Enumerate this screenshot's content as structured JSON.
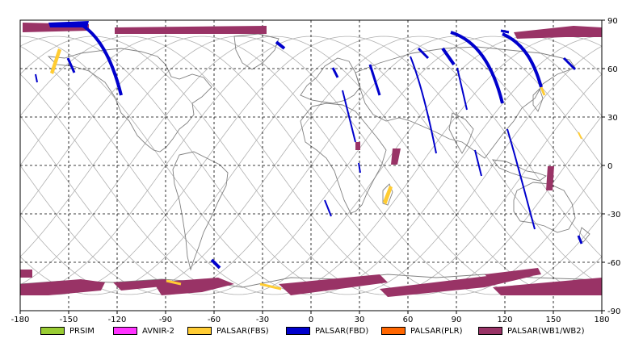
{
  "map": {
    "x_ticks": [
      "-180",
      "-150",
      "-120",
      "-90",
      "-60",
      "-30",
      "0",
      "30",
      "60",
      "90",
      "120",
      "150",
      "180"
    ],
    "y_ticks": [
      "90",
      "60",
      "30",
      "0",
      "-30",
      "-60",
      "-90"
    ],
    "frame_color": "#000000",
    "grid_color": "#000000",
    "orbit_color": "#b0b0b0",
    "coast_color": "#808080"
  },
  "legend": {
    "items": [
      {
        "label": "PRSIM",
        "color": "#99cc33"
      },
      {
        "label": "AVNIR-2",
        "color": "#ff33ff"
      },
      {
        "label": "PALSAR(FBS)",
        "color": "#ffcc33"
      },
      {
        "label": "PALSAR(FBD)",
        "color": "#0000cc"
      },
      {
        "label": "PALSAR(PLR)",
        "color": "#ff6600"
      },
      {
        "label": "PALSAR(WB1/WB2)",
        "color": "#993366"
      }
    ]
  }
}
